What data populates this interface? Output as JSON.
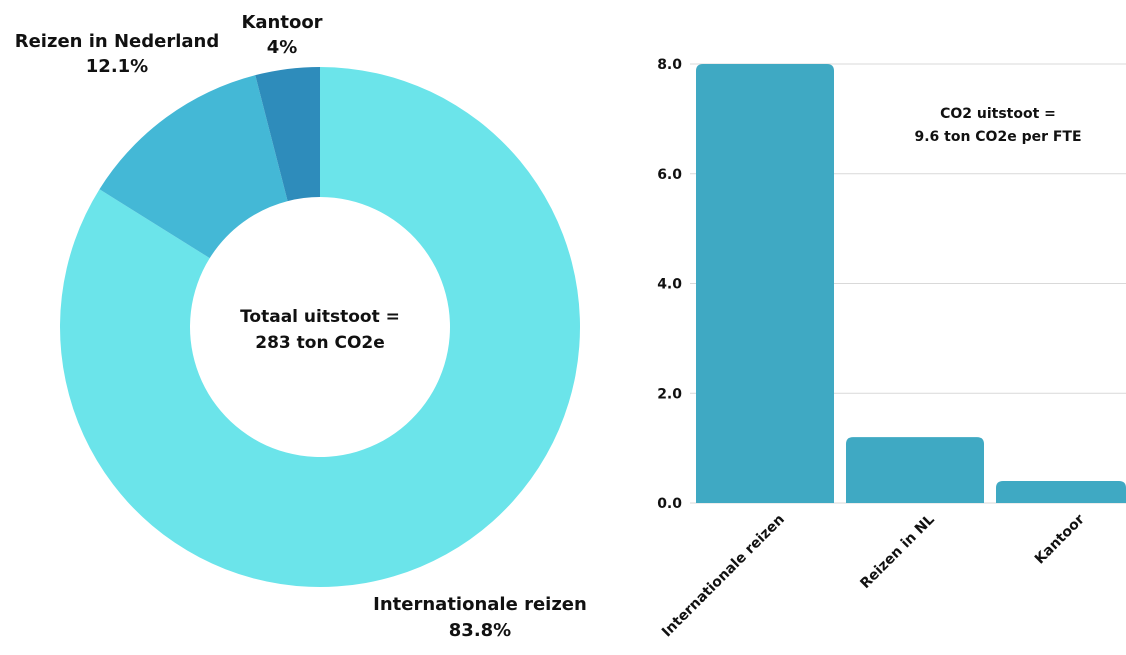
{
  "chart_data": [
    {
      "type": "pie",
      "variant": "donut",
      "center_label_lines": [
        "Totaal uitstoot =",
        "283 ton CO2e"
      ],
      "slices": [
        {
          "label": "Internationale reizen",
          "percent_label": "83.8%",
          "value": 83.8,
          "color": "#6BE4EA"
        },
        {
          "label": "Reizen in Nederland",
          "percent_label": "12.1%",
          "value": 12.1,
          "color": "#44B8D6"
        },
        {
          "label": "Kantoor",
          "percent_label": "4%",
          "value": 4.0,
          "color": "#2E8CBB"
        }
      ]
    },
    {
      "type": "bar",
      "categories": [
        "Internationale reizen",
        "Reizen in NL",
        "Kantoor"
      ],
      "values": [
        8.0,
        1.2,
        0.4
      ],
      "ylim": [
        0,
        8
      ],
      "yticks": [
        "0.0",
        "2.0",
        "4.0",
        "6.0",
        "8.0"
      ],
      "grid": true,
      "bar_color": "#3FA9C3",
      "annotation_lines": [
        "CO2 uitstoot =",
        "9.6 ton CO2e per FTE"
      ]
    }
  ]
}
